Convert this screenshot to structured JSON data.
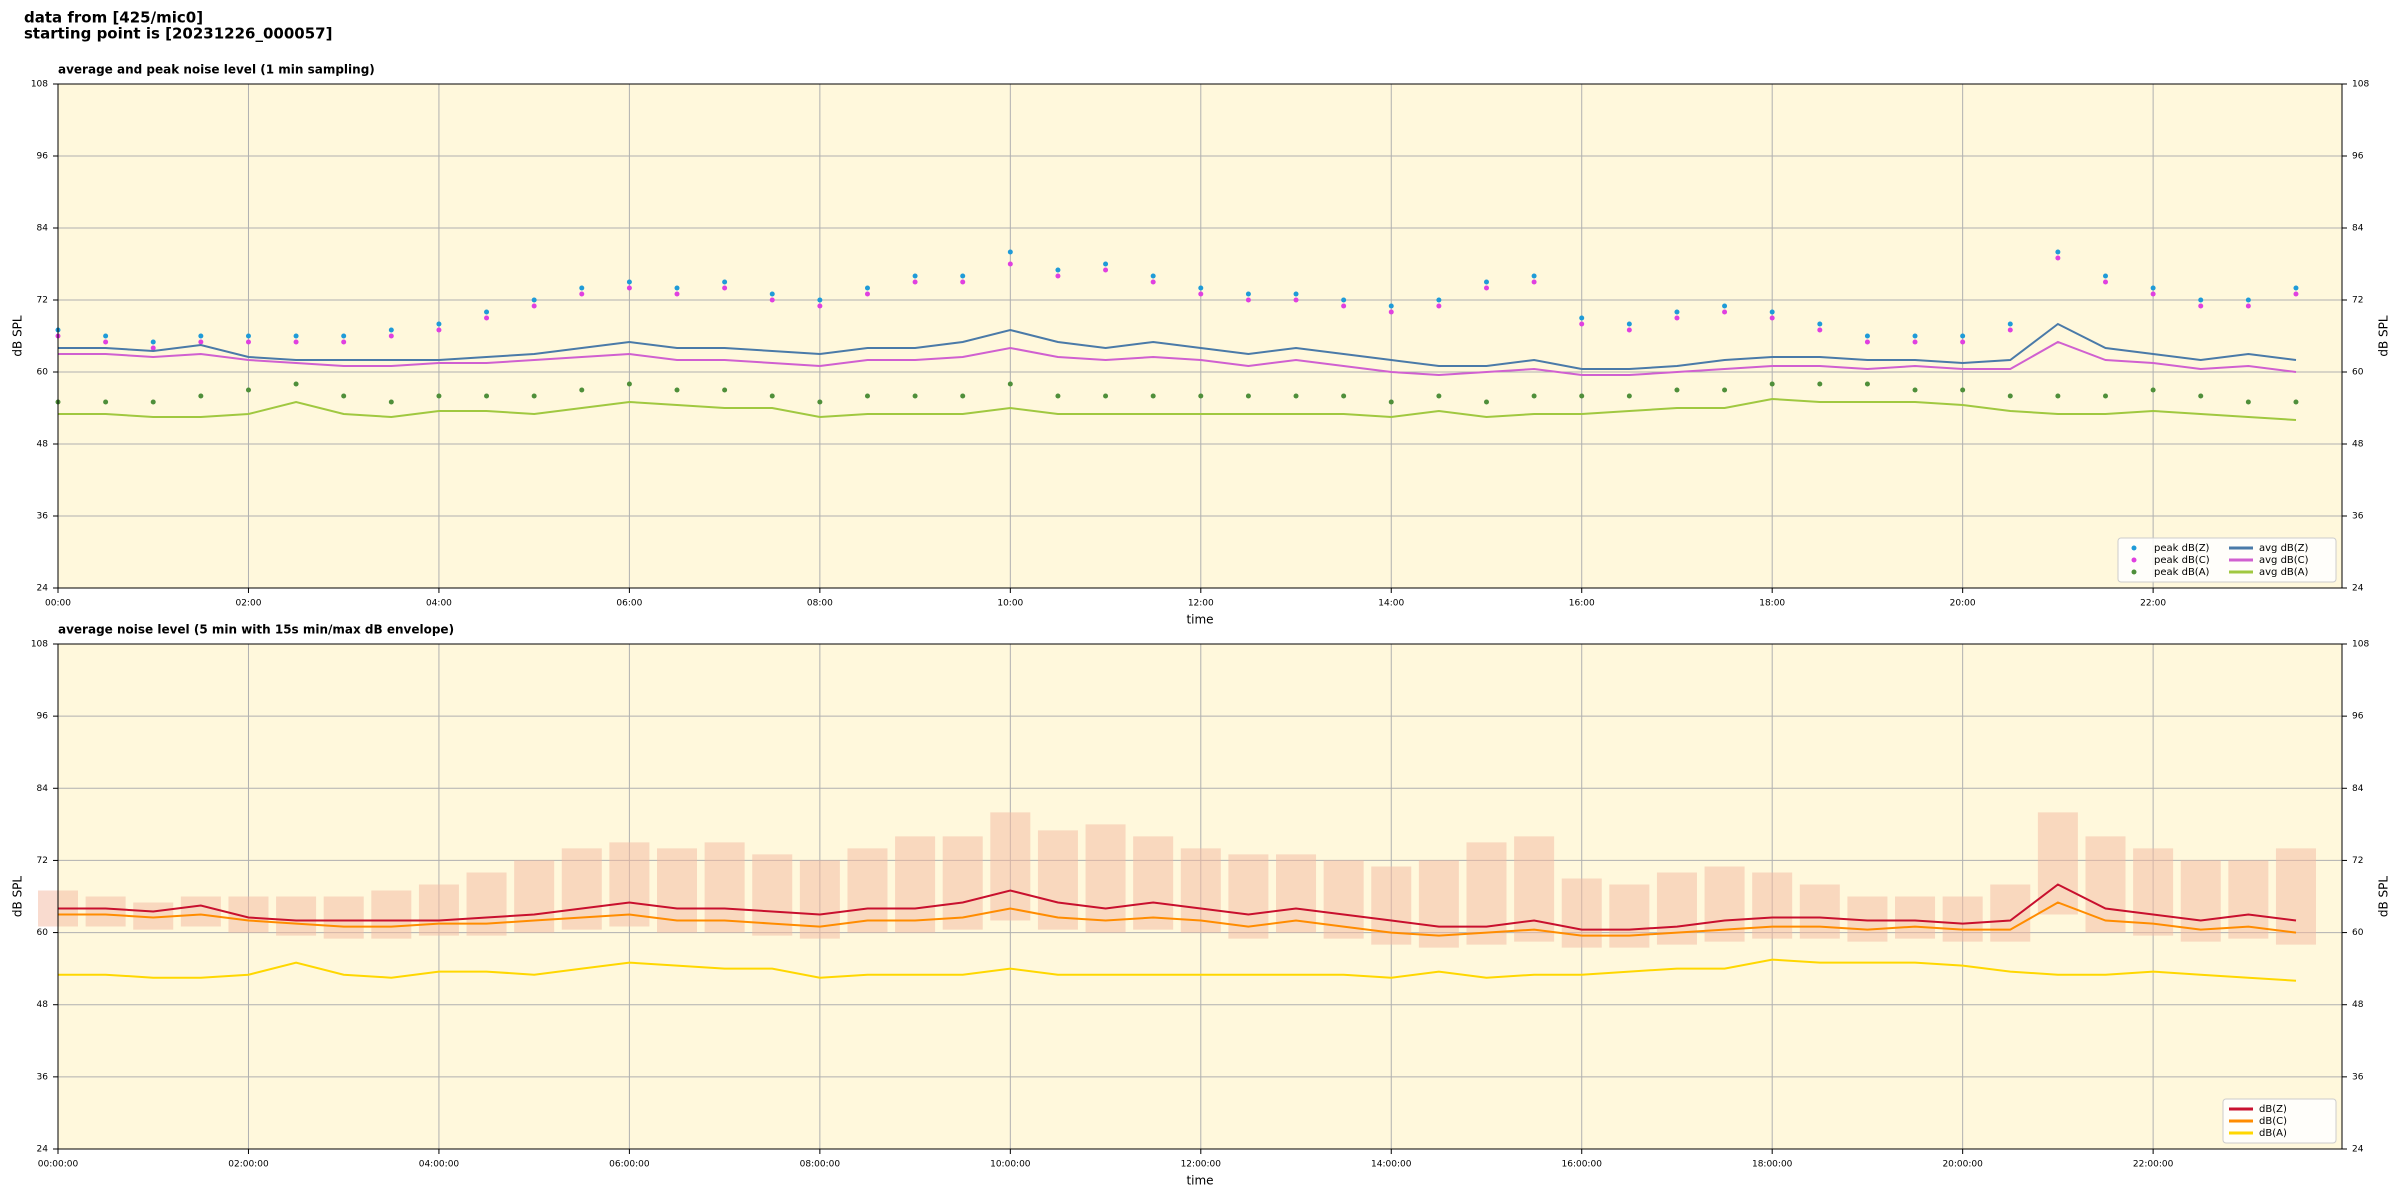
{
  "header": {
    "source": "data from [425/mic0]",
    "start": "starting point is [20231226_000057]"
  },
  "chart_data": [
    {
      "type": "line",
      "title": "average and peak noise level (1 min sampling)",
      "xlabel": "time",
      "ylabel": "dB SPL",
      "xlim": [
        "00:00",
        "23:59"
      ],
      "xticks": [
        "00:00",
        "02:00",
        "04:00",
        "06:00",
        "08:00",
        "10:00",
        "12:00",
        "14:00",
        "16:00",
        "18:00",
        "20:00",
        "22:00"
      ],
      "ylim": [
        24,
        108
      ],
      "yticks": [
        24,
        36,
        48,
        60,
        72,
        84,
        96,
        108
      ],
      "grid": true,
      "legend": "lower right",
      "legend_columns": 2,
      "background": "#fff8dc",
      "x": [
        "00:00",
        "00:30",
        "01:00",
        "01:30",
        "02:00",
        "02:30",
        "03:00",
        "03:30",
        "04:00",
        "04:30",
        "05:00",
        "05:30",
        "06:00",
        "06:30",
        "07:00",
        "07:30",
        "08:00",
        "08:30",
        "09:00",
        "09:30",
        "10:00",
        "10:30",
        "11:00",
        "11:30",
        "12:00",
        "12:30",
        "13:00",
        "13:30",
        "14:00",
        "14:30",
        "15:00",
        "15:30",
        "16:00",
        "16:30",
        "17:00",
        "17:30",
        "18:00",
        "18:30",
        "19:00",
        "19:30",
        "20:00",
        "20:30",
        "21:00",
        "21:30",
        "22:00",
        "22:30",
        "23:00",
        "23:30"
      ],
      "series": [
        {
          "name": "peak dB(Z)",
          "type": "scatter",
          "color": "#1f9bd8",
          "values": [
            67,
            66,
            65,
            66,
            66,
            66,
            66,
            67,
            68,
            70,
            72,
            74,
            75,
            74,
            75,
            73,
            72,
            74,
            76,
            76,
            80,
            77,
            78,
            76,
            74,
            73,
            73,
            72,
            71,
            72,
            75,
            76,
            69,
            68,
            70,
            71,
            70,
            68,
            66,
            66,
            66,
            68,
            80,
            76,
            74,
            72,
            72,
            74
          ]
        },
        {
          "name": "peak dB(C)",
          "type": "scatter",
          "color": "#e040e0",
          "values": [
            66,
            65,
            64,
            65,
            65,
            65,
            65,
            66,
            67,
            69,
            71,
            73,
            74,
            73,
            74,
            72,
            71,
            73,
            75,
            75,
            78,
            76,
            77,
            75,
            73,
            72,
            72,
            71,
            70,
            71,
            74,
            75,
            68,
            67,
            69,
            70,
            69,
            67,
            65,
            65,
            65,
            67,
            79,
            75,
            73,
            71,
            71,
            73
          ]
        },
        {
          "name": "peak dB(A)",
          "type": "scatter",
          "color": "#4f8f3a",
          "values": [
            55,
            55,
            55,
            56,
            57,
            58,
            56,
            55,
            56,
            56,
            56,
            57,
            58,
            57,
            57,
            56,
            55,
            56,
            56,
            56,
            58,
            56,
            56,
            56,
            56,
            56,
            56,
            56,
            55,
            56,
            55,
            56,
            56,
            56,
            57,
            57,
            58,
            58,
            58,
            57,
            57,
            56,
            56,
            56,
            57,
            56,
            55,
            55
          ]
        },
        {
          "name": "avg dB(Z)",
          "type": "line",
          "color": "#4a7aa8",
          "values": [
            64,
            64,
            63.5,
            64.5,
            62.5,
            62,
            62,
            62,
            62,
            62.5,
            63,
            64,
            65,
            64,
            64,
            63.5,
            63,
            64,
            64,
            65,
            67,
            65,
            64,
            65,
            64,
            63,
            64,
            63,
            62,
            61,
            61,
            62,
            60.5,
            60.5,
            61,
            62,
            62.5,
            62.5,
            62,
            62,
            61.5,
            62,
            68,
            64,
            63,
            62,
            63,
            62
          ]
        },
        {
          "name": "avg dB(C)",
          "type": "line",
          "color": "#d060d0",
          "values": [
            63,
            63,
            62.5,
            63,
            62,
            61.5,
            61,
            61,
            61.5,
            61.5,
            62,
            62.5,
            63,
            62,
            62,
            61.5,
            61,
            62,
            62,
            62.5,
            64,
            62.5,
            62,
            62.5,
            62,
            61,
            62,
            61,
            60,
            59.5,
            60,
            60.5,
            59.5,
            59.5,
            60,
            60.5,
            61,
            61,
            60.5,
            61,
            60.5,
            60.5,
            65,
            62,
            61.5,
            60.5,
            61,
            60
          ]
        },
        {
          "name": "avg dB(A)",
          "type": "line",
          "color": "#a0c840",
          "values": [
            53,
            53,
            52.5,
            52.5,
            53,
            55,
            53,
            52.5,
            53.5,
            53.5,
            53,
            54,
            55,
            54.5,
            54,
            54,
            52.5,
            53,
            53,
            53,
            54,
            53,
            53,
            53,
            53,
            53,
            53,
            53,
            52.5,
            53.5,
            52.5,
            53,
            53,
            53.5,
            54,
            54,
            55.5,
            55,
            55,
            55,
            54.5,
            53.5,
            53,
            53,
            53.5,
            53,
            52.5,
            52
          ]
        }
      ]
    },
    {
      "type": "line",
      "title": "average noise level (5 min with 15s min/max dB envelope)",
      "xlabel": "time",
      "ylabel": "dB SPL",
      "xlim": [
        "00:00",
        "23:59"
      ],
      "xticks": [
        {
          "value": "00:00",
          "label": "00:00:00"
        },
        {
          "value": "02:00",
          "label": "02:00:00"
        },
        {
          "value": "04:00",
          "label": "04:00:00"
        },
        {
          "value": "06:00",
          "label": "06:00:00"
        },
        {
          "value": "08:00",
          "label": "08:00:00"
        },
        {
          "value": "10:00",
          "label": "10:00:00"
        },
        {
          "value": "12:00",
          "label": "12:00:00"
        },
        {
          "value": "14:00",
          "label": "14:00:00"
        },
        {
          "value": "16:00",
          "label": "16:00:00"
        },
        {
          "value": "18:00",
          "label": "18:00:00"
        },
        {
          "value": "20:00",
          "label": "20:00:00"
        },
        {
          "value": "22:00",
          "label": "22:00:00"
        }
      ],
      "ylim": [
        24,
        108
      ],
      "yticks": [
        24,
        36,
        48,
        60,
        72,
        84,
        96,
        108
      ],
      "grid": true,
      "legend": "lower right",
      "legend_columns": 1,
      "background": "#fff8dc",
      "x": [
        "00:00",
        "00:30",
        "01:00",
        "01:30",
        "02:00",
        "02:30",
        "03:00",
        "03:30",
        "04:00",
        "04:30",
        "05:00",
        "05:30",
        "06:00",
        "06:30",
        "07:00",
        "07:30",
        "08:00",
        "08:30",
        "09:00",
        "09:30",
        "10:00",
        "10:30",
        "11:00",
        "11:30",
        "12:00",
        "12:30",
        "13:00",
        "13:30",
        "14:00",
        "14:30",
        "15:00",
        "15:30",
        "16:00",
        "16:30",
        "17:00",
        "17:30",
        "18:00",
        "18:30",
        "19:00",
        "19:30",
        "20:00",
        "20:30",
        "21:00",
        "21:30",
        "22:00",
        "22:30",
        "23:00",
        "23:30"
      ],
      "envelope": {
        "color": "#f4b8a0",
        "min": [
          61,
          61,
          60.5,
          61,
          60,
          59.5,
          59,
          59,
          59.5,
          59.5,
          60,
          60.5,
          61,
          60,
          60,
          59.5,
          59,
          60,
          60,
          60.5,
          62,
          60.5,
          60,
          60.5,
          60,
          59,
          60,
          59,
          58,
          57.5,
          58,
          58.5,
          57.5,
          57.5,
          58,
          58.5,
          59,
          59,
          58.5,
          59,
          58.5,
          58.5,
          63,
          60,
          59.5,
          58.5,
          59,
          58
        ],
        "max": [
          67,
          66,
          65,
          66,
          66,
          66,
          66,
          67,
          68,
          70,
          72,
          74,
          75,
          74,
          75,
          73,
          72,
          74,
          76,
          76,
          80,
          77,
          78,
          76,
          74,
          73,
          73,
          72,
          71,
          72,
          75,
          76,
          69,
          68,
          70,
          71,
          70,
          68,
          66,
          66,
          66,
          68,
          80,
          76,
          74,
          72,
          72,
          74
        ]
      },
      "series": [
        {
          "name": "dB(Z)",
          "type": "line",
          "color": "#c8102e",
          "values": [
            64,
            64,
            63.5,
            64.5,
            62.5,
            62,
            62,
            62,
            62,
            62.5,
            63,
            64,
            65,
            64,
            64,
            63.5,
            63,
            64,
            64,
            65,
            67,
            65,
            64,
            65,
            64,
            63,
            64,
            63,
            62,
            61,
            61,
            62,
            60.5,
            60.5,
            61,
            62,
            62.5,
            62.5,
            62,
            62,
            61.5,
            62,
            68,
            64,
            63,
            62,
            63,
            62
          ]
        },
        {
          "name": "dB(C)",
          "type": "line",
          "color": "#ff8c00",
          "values": [
            63,
            63,
            62.5,
            63,
            62,
            61.5,
            61,
            61,
            61.5,
            61.5,
            62,
            62.5,
            63,
            62,
            62,
            61.5,
            61,
            62,
            62,
            62.5,
            64,
            62.5,
            62,
            62.5,
            62,
            61,
            62,
            61,
            60,
            59.5,
            60,
            60.5,
            59.5,
            59.5,
            60,
            60.5,
            61,
            61,
            60.5,
            61,
            60.5,
            60.5,
            65,
            62,
            61.5,
            60.5,
            61,
            60
          ]
        },
        {
          "name": "dB(A)",
          "type": "line",
          "color": "#ffd700",
          "values": [
            53,
            53,
            52.5,
            52.5,
            53,
            55,
            53,
            52.5,
            53.5,
            53.5,
            53,
            54,
            55,
            54.5,
            54,
            54,
            52.5,
            53,
            53,
            53,
            54,
            53,
            53,
            53,
            53,
            53,
            53,
            53,
            52.5,
            53.5,
            52.5,
            53,
            53,
            53.5,
            54,
            54,
            55.5,
            55,
            55,
            55,
            54.5,
            53.5,
            53,
            53,
            53.5,
            53,
            52.5,
            52
          ]
        }
      ]
    }
  ]
}
